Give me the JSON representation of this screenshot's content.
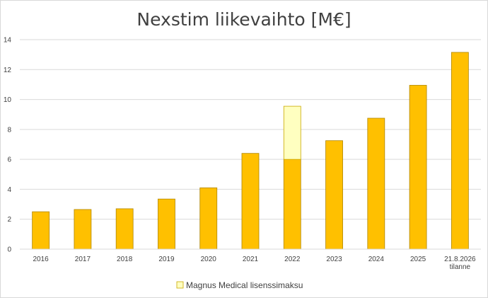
{
  "chart_data": {
    "type": "bar",
    "title": "Nexstim liikevaihto [M€]",
    "xlabel": "",
    "ylabel": "",
    "ylim": [
      0,
      14
    ],
    "yticks": [
      0,
      2,
      4,
      6,
      8,
      10,
      12,
      14
    ],
    "grid": true,
    "legend_position": "bottom",
    "categories": [
      [
        "2016"
      ],
      [
        "2017"
      ],
      [
        "2018"
      ],
      [
        "2019"
      ],
      [
        "2020"
      ],
      [
        "2021"
      ],
      [
        "2022"
      ],
      [
        "2023"
      ],
      [
        "2024"
      ],
      [
        "2025"
      ],
      [
        "21.8.2026",
        "tilanne"
      ]
    ],
    "series": [
      {
        "color": "#FFC000",
        "values": [
          2.5,
          2.65,
          2.7,
          3.35,
          4.1,
          6.4,
          6.0,
          7.25,
          8.75,
          10.95,
          13.15
        ]
      },
      {
        "name": "Magnus Medical lisenssimaksu",
        "color": "#FFFFC0",
        "values": [
          0,
          0,
          0,
          0,
          0,
          0,
          3.55,
          0,
          0,
          0,
          0
        ]
      }
    ]
  }
}
